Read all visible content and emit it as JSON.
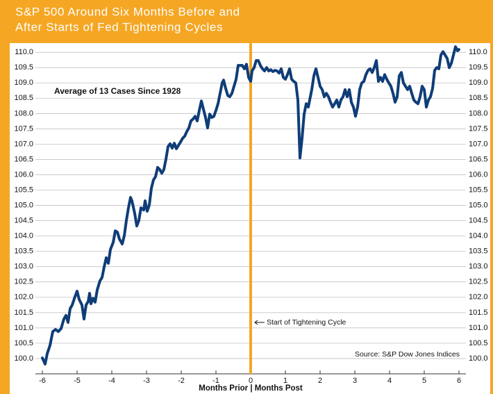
{
  "chart_data": {
    "type": "line",
    "title": [
      "S&P 500 Around Six Months Before and",
      "After Starts of Fed Tightening Cycles"
    ],
    "subtitle": "Average of 13 Cases Since 1928",
    "source": "Source: S&P Dow Jones Indices",
    "xlabel": "Months Prior | Months Post",
    "vline": {
      "x": 0,
      "label": "Start of Tightening Cycle",
      "color": "#f5a623"
    },
    "xlim": [
      -6.2,
      6.2
    ],
    "ylim": [
      99.5,
      110.3
    ],
    "xticks": [
      -6,
      -5,
      -4,
      -3,
      -2,
      -1,
      0,
      1,
      2,
      3,
      4,
      5,
      6
    ],
    "yticks": [
      {
        "value": 100,
        "label": "100.0"
      },
      {
        "value": 100.5,
        "label": "100.5"
      },
      {
        "value": 101,
        "label": "101.0"
      },
      {
        "value": 101.5,
        "label": "101.5"
      },
      {
        "value": 102,
        "label": "102.0"
      },
      {
        "value": 102.5,
        "label": "102.5"
      },
      {
        "value": 103,
        "label": "103.0"
      },
      {
        "value": 103.5,
        "label": "103.5"
      },
      {
        "value": 104,
        "label": "104.0"
      },
      {
        "value": 104.5,
        "label": "104.5"
      },
      {
        "value": 105,
        "label": "105.0"
      },
      {
        "value": 105.5,
        "label": "105.5"
      },
      {
        "value": 106,
        "label": "106.0"
      },
      {
        "value": 106.5,
        "label": "106.5"
      },
      {
        "value": 107,
        "label": "107.0"
      },
      {
        "value": 107.5,
        "label": "107.5"
      },
      {
        "value": 108,
        "label": "108.0"
      },
      {
        "value": 108.5,
        "label": "108.5"
      },
      {
        "value": 109,
        "label": "109.0"
      },
      {
        "value": 109.5,
        "label": "109.5"
      },
      {
        "value": 110,
        "label": "110.0"
      }
    ],
    "grid": true,
    "color": "#0f3d78",
    "x": [
      -6.0,
      -5.92,
      -5.86,
      -5.78,
      -5.7,
      -5.62,
      -5.54,
      -5.46,
      -5.38,
      -5.32,
      -5.26,
      -5.2,
      -5.14,
      -5.06,
      -5.0,
      -4.94,
      -4.86,
      -4.8,
      -4.74,
      -4.68,
      -4.64,
      -4.6,
      -4.54,
      -4.48,
      -4.42,
      -4.34,
      -4.28,
      -4.22,
      -4.16,
      -4.1,
      -4.04,
      -3.96,
      -3.9,
      -3.84,
      -3.78,
      -3.7,
      -3.64,
      -3.58,
      -3.52,
      -3.46,
      -3.42,
      -3.34,
      -3.28,
      -3.22,
      -3.16,
      -3.08,
      -3.04,
      -2.98,
      -2.92,
      -2.86,
      -2.8,
      -2.74,
      -2.68,
      -2.62,
      -2.56,
      -2.5,
      -2.44,
      -2.38,
      -2.32,
      -2.26,
      -2.2,
      -2.14,
      -2.08,
      -2.02,
      -1.96,
      -1.9,
      -1.84,
      -1.78,
      -1.72,
      -1.66,
      -1.6,
      -1.54,
      -1.48,
      -1.42,
      -1.36,
      -1.3,
      -1.24,
      -1.18,
      -1.12,
      -1.06,
      -1.0,
      -0.94,
      -0.88,
      -0.82,
      -0.78,
      -0.72,
      -0.66,
      -0.6,
      -0.54,
      -0.48,
      -0.42,
      -0.36,
      -0.3,
      -0.24,
      -0.18,
      -0.12,
      -0.06,
      0.0,
      0.04,
      0.1,
      0.16,
      0.22,
      0.28,
      0.34,
      0.4,
      0.46,
      0.52,
      0.58,
      0.64,
      0.7,
      0.76,
      0.82,
      0.88,
      0.94,
      1.0,
      1.06,
      1.12,
      1.18,
      1.24,
      1.3,
      1.36,
      1.42,
      1.48,
      1.54,
      1.6,
      1.66,
      1.7,
      1.76,
      1.82,
      1.88,
      1.94,
      2.0,
      2.06,
      2.12,
      2.18,
      2.24,
      2.3,
      2.36,
      2.42,
      2.48,
      2.54,
      2.6,
      2.66,
      2.72,
      2.78,
      2.84,
      2.9,
      2.96,
      3.02,
      3.08,
      3.14,
      3.2,
      3.26,
      3.32,
      3.38,
      3.44,
      3.5,
      3.56,
      3.62,
      3.68,
      3.74,
      3.8,
      3.86,
      3.92,
      3.98,
      4.04,
      4.1,
      4.16,
      4.22,
      4.28,
      4.34,
      4.4,
      4.46,
      4.52,
      4.58,
      4.64,
      4.7,
      4.76,
      4.82,
      4.88,
      4.94,
      5.0,
      5.06,
      5.12,
      5.18,
      5.24,
      5.3,
      5.36,
      5.42,
      5.48,
      5.54,
      5.6,
      5.66,
      5.72,
      5.78,
      5.84,
      5.9,
      5.96,
      6.0
    ],
    "values": [
      100.02,
      99.82,
      100.16,
      100.43,
      100.88,
      100.95,
      100.88,
      100.98,
      101.29,
      101.41,
      101.18,
      101.63,
      101.75,
      102.02,
      102.2,
      101.93,
      101.75,
      101.29,
      101.75,
      101.86,
      102.13,
      101.79,
      101.97,
      101.84,
      102.24,
      102.54,
      102.65,
      102.99,
      103.29,
      103.11,
      103.56,
      103.79,
      104.17,
      104.13,
      103.9,
      103.74,
      104.01,
      104.51,
      104.92,
      105.26,
      105.15,
      104.74,
      104.33,
      104.51,
      104.92,
      104.85,
      105.15,
      104.81,
      105.01,
      105.56,
      105.83,
      105.94,
      106.24,
      106.17,
      106.05,
      106.17,
      106.51,
      106.92,
      107.01,
      106.87,
      107.03,
      106.85,
      106.96,
      107.07,
      107.19,
      107.26,
      107.41,
      107.53,
      107.76,
      107.82,
      107.91,
      107.76,
      108.1,
      108.41,
      108.14,
      107.87,
      107.53,
      107.98,
      107.87,
      107.91,
      108.1,
      108.32,
      108.66,
      109.0,
      109.09,
      108.82,
      108.59,
      108.55,
      108.66,
      108.89,
      109.12,
      109.57,
      109.57,
      109.57,
      109.46,
      109.61,
      109.18,
      109.05,
      109.39,
      109.5,
      109.73,
      109.73,
      109.57,
      109.46,
      109.39,
      109.5,
      109.39,
      109.43,
      109.37,
      109.41,
      109.39,
      109.32,
      109.46,
      109.18,
      109.12,
      109.27,
      109.46,
      109.12,
      109.05,
      109.0,
      108.44,
      106.55,
      107.19,
      107.98,
      108.32,
      108.21,
      108.44,
      108.78,
      109.23,
      109.46,
      109.18,
      108.89,
      108.78,
      108.55,
      108.66,
      108.55,
      108.37,
      108.21,
      108.32,
      108.44,
      108.21,
      108.44,
      108.55,
      108.78,
      108.55,
      108.78,
      108.37,
      108.21,
      107.91,
      108.21,
      108.78,
      109.0,
      109.05,
      109.27,
      109.41,
      109.46,
      109.34,
      109.5,
      109.73,
      109.05,
      109.18,
      109.05,
      109.27,
      109.12,
      109.0,
      108.89,
      108.66,
      108.37,
      108.55,
      109.23,
      109.34,
      109.0,
      108.89,
      108.78,
      108.89,
      108.66,
      108.44,
      108.37,
      108.32,
      108.55,
      108.89,
      108.78,
      108.21,
      108.44,
      108.55,
      108.82,
      109.41,
      109.5,
      109.46,
      109.91,
      110.02,
      109.91,
      109.8,
      109.5,
      109.64,
      109.91,
      110.18,
      110.05,
      110.09
    ]
  }
}
